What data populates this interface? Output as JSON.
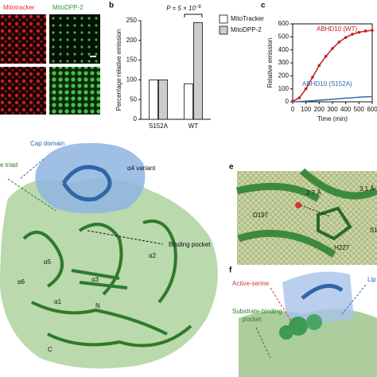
{
  "figure": {
    "panel_labels": [
      "b",
      "c",
      "e",
      "f"
    ],
    "image_labels": [
      "Mitotracker",
      "MitoDPP-2"
    ],
    "structure_labels": [
      "Cap domain",
      "α4 variant",
      "e triad",
      "Binding pocket",
      "α5",
      "α6",
      "α3",
      "α1",
      "α2",
      "N",
      "C"
    ],
    "detail_labels": [
      "2.7 Å",
      "3.1 Å",
      "D197",
      "H227",
      "S1"
    ],
    "pocket_labels": [
      "Active-serine",
      "Lip",
      "Substrate-binding",
      "pocket"
    ]
  },
  "chart_data": [
    {
      "type": "bar",
      "ylabel": "Percentage relative emission",
      "annotation": {
        "text": "P = 5 × 10",
        "superscript": "−8"
      },
      "categories": [
        "S152A",
        "WT"
      ],
      "series": [
        {
          "name": "MitoTracker",
          "color": "#ffffff",
          "values": [
            100,
            90
          ]
        },
        {
          "name": "MitoDPP-2",
          "color": "#cccccc",
          "values": [
            100,
            245
          ]
        }
      ],
      "ylim": [
        0,
        250
      ],
      "yticks": [
        0,
        50,
        100,
        150,
        200,
        250
      ]
    },
    {
      "type": "line",
      "xlabel": "Time (min)",
      "ylabel": "Relative emission",
      "x": [
        0,
        50,
        100,
        150,
        200,
        250,
        300,
        350,
        400,
        450,
        500,
        550,
        600
      ],
      "series": [
        {
          "name": "ABHD10 (WT)",
          "color": "#c0201e",
          "values": [
            5,
            30,
            100,
            190,
            280,
            350,
            410,
            460,
            495,
            520,
            535,
            545,
            550
          ]
        },
        {
          "name": "ABHD10 (S152A)",
          "color": "#2a6bb0",
          "values": [
            0,
            2,
            5,
            8,
            12,
            16,
            20,
            24,
            28,
            31,
            35,
            38,
            40
          ]
        }
      ],
      "xlim": [
        0,
        600
      ],
      "xticks": [
        0,
        100,
        200,
        300,
        400,
        500,
        600
      ],
      "ylim": [
        0,
        600
      ],
      "yticks": [
        0,
        100,
        200,
        300,
        400,
        500,
        600
      ]
    }
  ]
}
